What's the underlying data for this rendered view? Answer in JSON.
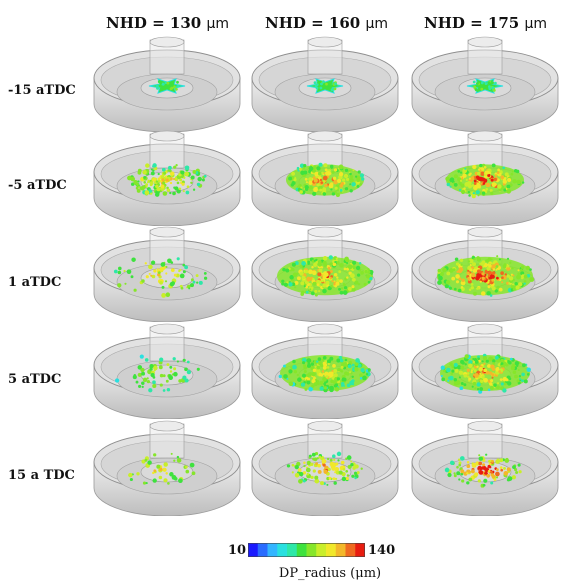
{
  "columns": [
    {
      "label": "NHD = 130",
      "unit": "μm",
      "intensity": 0
    },
    {
      "label": "NHD = 160",
      "unit": "μm",
      "intensity": 1
    },
    {
      "label": "NHD = 175",
      "unit": "μm",
      "intensity": 2
    }
  ],
  "rows": [
    {
      "label": "-15 aTDC",
      "stage": 0
    },
    {
      "label": "-5 aTDC",
      "stage": 1
    },
    {
      "label": "1 aTDC",
      "stage": 2
    },
    {
      "label": "5 aTDC",
      "stage": 3
    },
    {
      "label": "15 a TDC",
      "stage": 4
    }
  ],
  "colorbar": {
    "min": "10",
    "max": "140",
    "label": "DP_radius (μm)",
    "colors": [
      "#1a1aff",
      "#2a6cff",
      "#33b5ff",
      "#29e0e0",
      "#2de8a8",
      "#3ee23e",
      "#86e62a",
      "#c9ee2a",
      "#f1e82a",
      "#f3b72a",
      "#ef6a20",
      "#e81c10"
    ]
  }
}
